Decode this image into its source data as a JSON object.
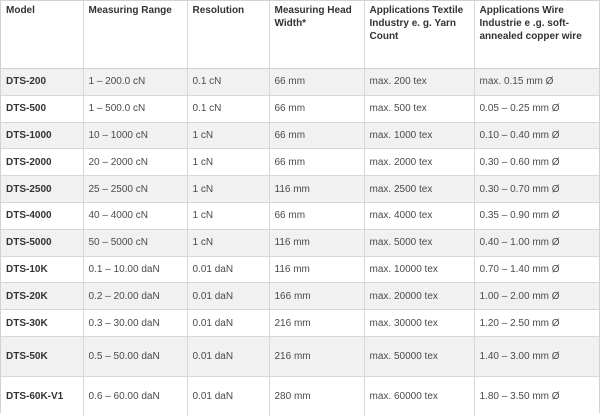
{
  "table": {
    "headers": [
      {
        "key": "model",
        "label": "Model"
      },
      {
        "key": "range",
        "label": "Measuring Range"
      },
      {
        "key": "resolution",
        "label": "Resolution"
      },
      {
        "key": "head_width",
        "label": "Measuring Head Width*"
      },
      {
        "key": "textile",
        "label": "Applications Textile Industry e. g. Yarn Count"
      },
      {
        "key": "wire",
        "label": "Applications Wire Industrie e .g. soft-annealed copper wire"
      }
    ],
    "rows": [
      [
        "DTS-200",
        "1 – 200.0 cN",
        "0.1 cN",
        "66 mm",
        "max. 200 tex",
        "max. 0.15 mm Ø"
      ],
      [
        "DTS-500",
        "1 – 500.0 cN",
        "0.1 cN",
        "66 mm",
        "max. 500 tex",
        "0.05 – 0.25 mm Ø"
      ],
      [
        "DTS-1000",
        "10 – 1000 cN",
        "1 cN",
        "66 mm",
        "max. 1000 tex",
        "0.10 – 0.40 mm Ø"
      ],
      [
        "DTS-2000",
        "20 – 2000 cN",
        "1 cN",
        "66 mm",
        "max. 2000 tex",
        "0.30 – 0.60 mm Ø"
      ],
      [
        "DTS-2500",
        "25 – 2500 cN",
        "1 cN",
        "116 mm",
        "max. 2500 tex",
        "0.30 – 0.70 mm Ø"
      ],
      [
        "DTS-4000",
        "40 – 4000 cN",
        "1 cN",
        "66 mm",
        "max. 4000 tex",
        "0.35 – 0.90 mm Ø"
      ],
      [
        "DTS-5000",
        "50 – 5000 cN",
        "1 cN",
        "116 mm",
        "max. 5000 tex",
        "0.40 – 1.00 mm Ø"
      ],
      [
        "DTS-10K",
        "0.1 – 10.00 daN",
        "0.01 daN",
        "116 mm",
        "max. 10000 tex",
        "0.70 – 1.40 mm Ø"
      ],
      [
        "DTS-20K",
        "0.2 – 20.00 daN",
        "0.01 daN",
        "166 mm",
        "max. 20000 tex",
        "1.00 – 2.00 mm Ø"
      ],
      [
        "DTS-30K",
        "0.3 – 30.00 daN",
        "0.01 daN",
        "216 mm",
        "max. 30000 tex",
        "1.20 – 2.50 mm Ø"
      ],
      [
        "DTS-50K",
        "0.5 – 50.00 daN",
        "0.01 daN",
        "216 mm",
        "max. 50000 tex",
        "1.40 – 3.00 mm Ø"
      ],
      [
        "DTS-60K-V1",
        "0.6 – 60.00 daN",
        "0.01 daN",
        "280 mm",
        "max. 60000 tex",
        "1.80 – 3.50 mm Ø"
      ]
    ]
  }
}
